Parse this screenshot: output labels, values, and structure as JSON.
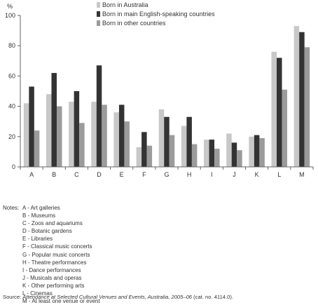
{
  "chart_data": {
    "type": "bar",
    "ylabel": "%",
    "ylim": [
      0,
      100
    ],
    "yticks": [
      0,
      20,
      40,
      60,
      80,
      100
    ],
    "grid": false,
    "legend_position": "top",
    "categories": [
      "A",
      "B",
      "C",
      "D",
      "E",
      "F",
      "G",
      "H",
      "I",
      "J",
      "K",
      "L",
      "M"
    ],
    "series": [
      {
        "name": "Born in Australia",
        "color": "#c8c8c8",
        "values": [
          42,
          48,
          43,
          43,
          36,
          13,
          38,
          27,
          18,
          22,
          20,
          76,
          93
        ]
      },
      {
        "name": "Born in main English-speaking countries",
        "color": "#333333",
        "values": [
          53,
          62,
          50,
          67,
          41,
          23,
          33,
          33,
          18,
          16,
          21,
          72,
          89
        ]
      },
      {
        "name": "Born in other countries",
        "color": "#9b9b9b",
        "values": [
          24,
          40,
          29,
          41,
          30,
          14,
          21,
          15,
          12,
          11,
          19,
          51,
          79
        ]
      }
    ]
  },
  "notes": {
    "lead": "Notes:",
    "items": [
      "A - Art galleries",
      "B - Museums",
      "C - Zoos and aquariums",
      "D - Botanic gardens",
      "E - Libraries",
      "F - Classical music concerts",
      "G - Popular music concerts",
      "H - Theatre performances",
      "I - Dance performances",
      "J - Musicals and operas",
      "K - Other performing arts",
      "L - Cinemas",
      "M - At least one venue or event"
    ]
  },
  "source": {
    "prefix": "Source: ",
    "title": "Attendance at Selected Cultural Venues and Events, Australia, 2005–06",
    "suffix": " (cat. no. 4114.0)."
  }
}
